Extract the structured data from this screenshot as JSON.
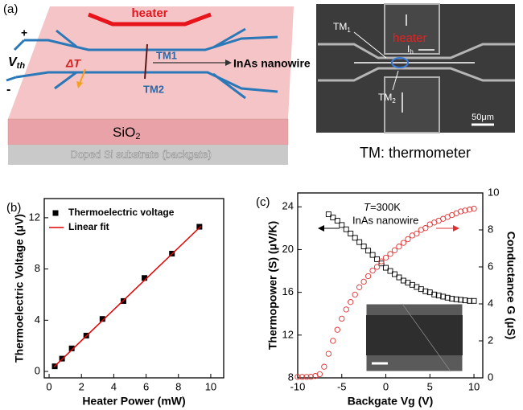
{
  "panel_a": {
    "label": "(a)",
    "heater": "heater",
    "plus": "+",
    "minus": "-",
    "vth": {
      "base": "V",
      "sub": "th"
    },
    "delta_t": "ΔT",
    "tm1": "TM1",
    "tm2": "TM2",
    "nanowire": "InAs nanowire",
    "oxide": {
      "base": "SiO",
      "sub": "2"
    },
    "substrate": "Doped Si substrate (backgate)",
    "sem": {
      "tm1": {
        "base": "TM",
        "sub": "1"
      },
      "heater": "heater",
      "current": {
        "base": "I",
        "sub": "h"
      },
      "tm2": {
        "base": "TM",
        "sub": "2"
      },
      "scale": "50μm"
    },
    "caption": "TM: thermometer"
  },
  "chart_data": [
    {
      "type": "scatter",
      "panel_label": "(b)",
      "xlabel": "Heater Power (mW)",
      "ylabel": "Thermoelectric Voltage (μV)",
      "xlim": [
        -0.3,
        10.8
      ],
      "ylim": [
        -0.5,
        13.5
      ],
      "xticks": [
        0,
        2,
        4,
        6,
        8,
        10
      ],
      "yticks": [
        0,
        4,
        8,
        12
      ],
      "legend": "upper left",
      "series": [
        {
          "name": "Thermoelectric voltage",
          "color": "#000000",
          "marker": "square",
          "x": [
            0.35,
            0.8,
            1.4,
            2.3,
            3.3,
            4.6,
            5.9,
            7.6,
            9.3
          ],
          "values": [
            0.4,
            1.0,
            1.8,
            2.8,
            4.1,
            5.5,
            7.3,
            9.2,
            11.3
          ]
        },
        {
          "name": "Linear fit",
          "color": "#e00000",
          "style": "line",
          "x": [
            0.3,
            9.4
          ],
          "values": [
            0.35,
            11.35
          ]
        }
      ]
    },
    {
      "type": "scatter",
      "panel_label": "(c)",
      "xlabel": "Backgate Vg (V)",
      "ylabel": "Thermopower (S) (μV/K)",
      "y2label": "Conductance G (μS)",
      "xlim": [
        -10,
        11
      ],
      "ylim": [
        8,
        25.3
      ],
      "y2lim": [
        0,
        10
      ],
      "xticks": [
        -10,
        -5,
        0,
        5,
        10
      ],
      "yticks": [
        8,
        12,
        16,
        20,
        24
      ],
      "y2ticks": [
        0,
        2,
        4,
        6,
        8,
        10
      ],
      "annotations": {
        "temperature": {
          "symbol": "T",
          "text": "=300K"
        },
        "sample": "InAs nanowire"
      },
      "series": [
        {
          "color": "#000000",
          "marker": "square-open",
          "x": [
            -6.5,
            -6,
            -5.5,
            -5,
            -4.5,
            -4,
            -3.5,
            -3,
            -2.5,
            -2,
            -1.5,
            -1,
            -0.5,
            0,
            0.5,
            1,
            1.5,
            2,
            2.5,
            3,
            3.5,
            4,
            4.5,
            5,
            5.5,
            6,
            6.5,
            7,
            7.5,
            8,
            8.5,
            9,
            9.5,
            10
          ],
          "values": [
            23.3,
            23.0,
            22.7,
            22.3,
            21.9,
            21.5,
            21.1,
            20.7,
            20.3,
            19.9,
            19.5,
            19.1,
            18.7,
            18.3,
            18.0,
            17.7,
            17.4,
            17.1,
            16.9,
            16.7,
            16.5,
            16.3,
            16.1,
            16.0,
            15.8,
            15.7,
            15.6,
            15.5,
            15.4,
            15.35,
            15.3,
            15.25,
            15.2,
            15.2
          ]
        },
        {
          "color": "#e03030",
          "marker": "circle-open",
          "axis": "y2",
          "x": [
            -10,
            -9.5,
            -9,
            -8.5,
            -8,
            -7.5,
            -7,
            -6.5,
            -6,
            -5.5,
            -5,
            -4.5,
            -4,
            -3.5,
            -3,
            -2.5,
            -2,
            -1.5,
            -1,
            -0.5,
            0,
            0.5,
            1,
            1.5,
            2,
            2.5,
            3,
            3.5,
            4,
            4.5,
            5,
            5.5,
            6,
            6.5,
            7,
            7.5,
            8,
            8.5,
            9,
            9.5,
            10
          ],
          "values": [
            0.05,
            0.05,
            0.05,
            0.06,
            0.1,
            0.2,
            0.6,
            1.3,
            2.0,
            2.6,
            3.2,
            3.7,
            4.1,
            4.5,
            4.9,
            5.2,
            5.5,
            5.8,
            6.0,
            6.3,
            6.5,
            6.7,
            6.9,
            7.1,
            7.3,
            7.5,
            7.7,
            7.8,
            8.0,
            8.1,
            8.3,
            8.4,
            8.5,
            8.6,
            8.7,
            8.8,
            8.9,
            9.0,
            9.05,
            9.1,
            9.15
          ]
        }
      ]
    }
  ]
}
